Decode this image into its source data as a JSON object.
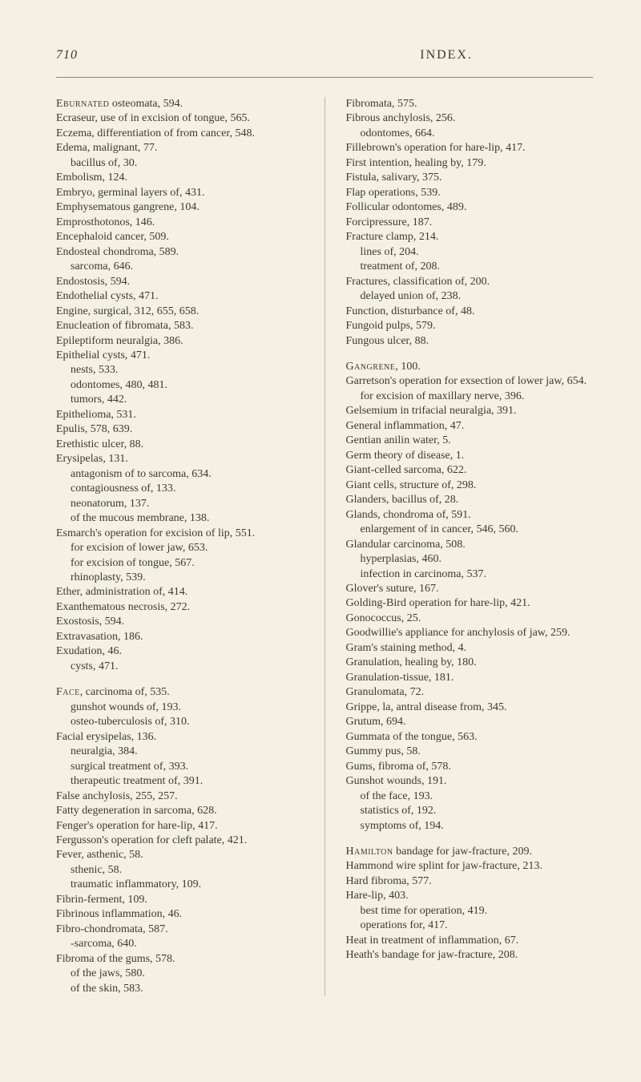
{
  "page_number": "710",
  "header_title": "INDEX.",
  "left_column": [
    {
      "cls": "entry",
      "html": "<span class=\"sc\">Eburnated</span> osteomata, 594."
    },
    {
      "cls": "entry",
      "text": "Ecraseur, use of in excision of tongue, 565."
    },
    {
      "cls": "entry",
      "text": "Eczema, differentiation of from cancer, 548."
    },
    {
      "cls": "entry",
      "text": "Edema, malignant, 77."
    },
    {
      "cls": "sub",
      "text": "bacillus of, 30."
    },
    {
      "cls": "entry",
      "text": "Embolism, 124."
    },
    {
      "cls": "entry",
      "text": "Embryo, germinal layers of, 431."
    },
    {
      "cls": "entry",
      "text": "Emphysematous gangrene, 104."
    },
    {
      "cls": "entry",
      "text": "Emprosthotonos, 146."
    },
    {
      "cls": "entry",
      "text": "Encephaloid cancer, 509."
    },
    {
      "cls": "entry",
      "text": "Endosteal chondroma, 589."
    },
    {
      "cls": "sub",
      "text": "sarcoma, 646."
    },
    {
      "cls": "entry",
      "text": "Endostosis, 594."
    },
    {
      "cls": "entry",
      "text": "Endothelial cysts, 471."
    },
    {
      "cls": "entry",
      "text": "Engine, surgical, 312, 655, 658."
    },
    {
      "cls": "entry",
      "text": "Enucleation of fibromata, 583."
    },
    {
      "cls": "entry",
      "text": "Epileptiform neuralgia, 386."
    },
    {
      "cls": "entry",
      "text": "Epithelial cysts, 471."
    },
    {
      "cls": "sub",
      "text": "nests, 533."
    },
    {
      "cls": "sub",
      "text": "odontomes, 480, 481."
    },
    {
      "cls": "sub",
      "text": "tumors, 442."
    },
    {
      "cls": "entry",
      "text": "Epithelioma, 531."
    },
    {
      "cls": "entry",
      "text": "Epulis, 578, 639."
    },
    {
      "cls": "entry",
      "text": "Erethistic ulcer, 88."
    },
    {
      "cls": "entry",
      "text": "Erysipelas, 131."
    },
    {
      "cls": "sub",
      "text": "antagonism of to sarcoma, 634."
    },
    {
      "cls": "sub",
      "text": "contagiousness of, 133."
    },
    {
      "cls": "sub",
      "text": "neonatorum, 137."
    },
    {
      "cls": "sub",
      "text": "of the mucous membrane, 138."
    },
    {
      "cls": "entry",
      "text": "Esmarch's operation for excision of lip, 551."
    },
    {
      "cls": "sub",
      "text": "for excision of lower jaw, 653."
    },
    {
      "cls": "sub",
      "text": "for excision of tongue, 567."
    },
    {
      "cls": "sub",
      "text": "rhinoplasty, 539."
    },
    {
      "cls": "entry",
      "text": "Ether, administration of, 414."
    },
    {
      "cls": "entry",
      "text": "Exanthematous necrosis, 272."
    },
    {
      "cls": "entry",
      "text": "Exostosis, 594."
    },
    {
      "cls": "entry",
      "text": "Extravasation, 186."
    },
    {
      "cls": "entry",
      "text": "Exudation, 46."
    },
    {
      "cls": "sub",
      "text": "cysts, 471."
    },
    {
      "cls": "gap"
    },
    {
      "cls": "entry",
      "html": "<span class=\"sc\">Face</span>, carcinoma of, 535."
    },
    {
      "cls": "sub",
      "text": "gunshot wounds of, 193."
    },
    {
      "cls": "sub",
      "text": "osteo-tuberculosis of, 310."
    },
    {
      "cls": "entry",
      "text": "Facial erysipelas, 136."
    },
    {
      "cls": "sub",
      "text": "neuralgia, 384."
    },
    {
      "cls": "sub",
      "text": "surgical treatment of, 393."
    },
    {
      "cls": "sub",
      "text": "therapeutic treatment of, 391."
    },
    {
      "cls": "entry",
      "text": "False anchylosis, 255, 257."
    },
    {
      "cls": "entry",
      "text": "Fatty degeneration in sarcoma, 628."
    },
    {
      "cls": "entry",
      "text": "Fenger's operation for hare-lip, 417."
    },
    {
      "cls": "entry",
      "text": "Fergusson's operation for cleft palate, 421."
    },
    {
      "cls": "entry",
      "text": "Fever, asthenic, 58."
    },
    {
      "cls": "sub",
      "text": "sthenic, 58."
    },
    {
      "cls": "sub",
      "text": "traumatic inflammatory, 109."
    },
    {
      "cls": "entry",
      "text": "Fibrin-ferment, 109."
    },
    {
      "cls": "entry",
      "text": "Fibrinous inflammation, 46."
    },
    {
      "cls": "entry",
      "text": "Fibro-chondromata, 587."
    },
    {
      "cls": "sub",
      "text": "-sarcoma, 640."
    },
    {
      "cls": "entry",
      "text": "Fibroma of the gums, 578."
    },
    {
      "cls": "sub",
      "text": "of the jaws, 580."
    },
    {
      "cls": "sub",
      "text": "of the skin, 583."
    }
  ],
  "right_column": [
    {
      "cls": "entry",
      "text": "Fibromata, 575."
    },
    {
      "cls": "entry",
      "text": "Fibrous anchylosis, 256."
    },
    {
      "cls": "sub",
      "text": "odontomes, 664."
    },
    {
      "cls": "entry",
      "text": "Fillebrown's operation for hare-lip, 417."
    },
    {
      "cls": "entry",
      "text": "First intention, healing by, 179."
    },
    {
      "cls": "entry",
      "text": "Fistula, salivary, 375."
    },
    {
      "cls": "entry",
      "text": "Flap operations, 539."
    },
    {
      "cls": "entry",
      "text": "Follicular odontomes, 489."
    },
    {
      "cls": "entry",
      "text": "Forcipressure, 187."
    },
    {
      "cls": "entry",
      "text": "Fracture clamp, 214."
    },
    {
      "cls": "sub",
      "text": "lines of, 204."
    },
    {
      "cls": "sub",
      "text": "treatment of, 208."
    },
    {
      "cls": "entry",
      "text": "Fractures, classification of, 200."
    },
    {
      "cls": "sub",
      "text": "delayed union of, 238."
    },
    {
      "cls": "entry",
      "text": "Function, disturbance of, 48."
    },
    {
      "cls": "entry",
      "text": "Fungoid pulps, 579."
    },
    {
      "cls": "entry",
      "text": "Fungous ulcer, 88."
    },
    {
      "cls": "gap"
    },
    {
      "cls": "entry",
      "html": "<span class=\"sc\">Gangrene</span>, 100."
    },
    {
      "cls": "entry",
      "text": "Garretson's operation for exsection of lower jaw, 654."
    },
    {
      "cls": "sub",
      "text": "for excision of maxillary nerve, 396."
    },
    {
      "cls": "entry",
      "text": "Gelsemium in trifacial neuralgia, 391."
    },
    {
      "cls": "entry",
      "text": "General inflammation, 47."
    },
    {
      "cls": "entry",
      "text": "Gentian anilin water, 5."
    },
    {
      "cls": "entry",
      "text": "Germ theory of disease, 1."
    },
    {
      "cls": "entry",
      "text": "Giant-celled sarcoma, 622."
    },
    {
      "cls": "entry",
      "text": "Giant cells, structure of, 298."
    },
    {
      "cls": "entry",
      "text": "Glanders, bacillus of, 28."
    },
    {
      "cls": "entry",
      "text": "Glands, chondroma of, 591."
    },
    {
      "cls": "sub",
      "text": "enlargement of in cancer, 546, 560."
    },
    {
      "cls": "entry",
      "text": "Glandular carcinoma, 508."
    },
    {
      "cls": "sub",
      "text": "hyperplasias, 460."
    },
    {
      "cls": "sub",
      "text": "infection in carcinoma, 537."
    },
    {
      "cls": "entry",
      "text": "Glover's suture, 167."
    },
    {
      "cls": "entry",
      "text": "Golding-Bird operation for hare-lip, 421."
    },
    {
      "cls": "entry",
      "text": "Gonococcus, 25."
    },
    {
      "cls": "entry",
      "text": "Goodwillie's appliance for anchylosis of jaw, 259."
    },
    {
      "cls": "entry",
      "text": "Gram's staining method, 4."
    },
    {
      "cls": "entry",
      "text": "Granulation, healing by, 180."
    },
    {
      "cls": "entry",
      "text": "Granulation-tissue, 181."
    },
    {
      "cls": "entry",
      "text": "Granulomata, 72."
    },
    {
      "cls": "entry",
      "text": "Grippe, la, antral disease from, 345."
    },
    {
      "cls": "entry",
      "text": "Grutum, 694."
    },
    {
      "cls": "entry",
      "text": "Gummata of the tongue, 563."
    },
    {
      "cls": "entry",
      "text": "Gummy pus, 58."
    },
    {
      "cls": "entry",
      "text": "Gums, fibroma of, 578."
    },
    {
      "cls": "entry",
      "text": "Gunshot wounds, 191."
    },
    {
      "cls": "sub",
      "text": "of the face, 193."
    },
    {
      "cls": "sub",
      "text": "statistics of, 192."
    },
    {
      "cls": "sub",
      "text": "symptoms of, 194."
    },
    {
      "cls": "gap"
    },
    {
      "cls": "entry",
      "html": "<span class=\"sc\">Hamilton</span> bandage for jaw-fracture, 209."
    },
    {
      "cls": "entry",
      "text": "Hammond wire splint for jaw-fracture, 213."
    },
    {
      "cls": "entry",
      "text": "Hard fibroma, 577."
    },
    {
      "cls": "entry",
      "text": "Hare-lip, 403."
    },
    {
      "cls": "sub",
      "text": "best time for operation, 419."
    },
    {
      "cls": "sub",
      "text": "operations for, 417."
    },
    {
      "cls": "entry",
      "text": "Heat in treatment of inflammation, 67."
    },
    {
      "cls": "entry",
      "text": "Heath's bandage for jaw-fracture, 208."
    }
  ]
}
